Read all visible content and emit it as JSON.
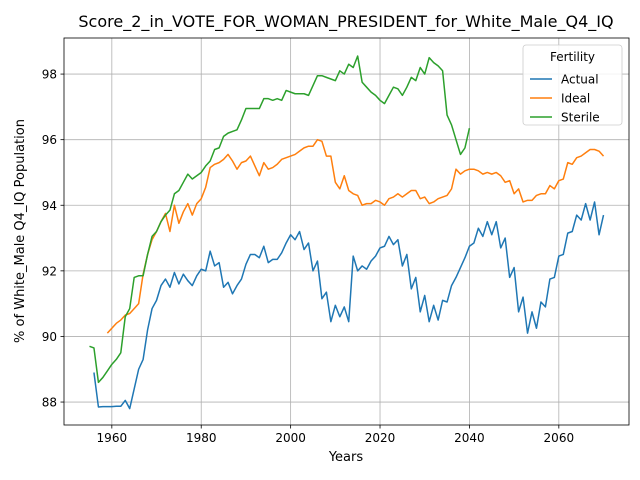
{
  "chart_data": {
    "type": "line",
    "title": "Score_2_in_VOTE_FOR_WOMAN_PRESIDENT_for_White_Male_Q4_IQ",
    "xlabel": "Years",
    "ylabel": "% of White_Male Q4_IQ Population",
    "xlim": [
      1949.3,
      2075.7
    ],
    "ylim": [
      87.3,
      99.1
    ],
    "x_ticks": [
      1960,
      1980,
      2000,
      2020,
      2040,
      2060
    ],
    "y_ticks": [
      88,
      90,
      92,
      94,
      96,
      98
    ],
    "grid": true,
    "legend": {
      "title": "Fertility",
      "placement": "top-right"
    },
    "series": [
      {
        "name": "Actual",
        "color": "#1f77b4",
        "points": [
          [
            1956,
            88.9
          ],
          [
            1957,
            87.85
          ],
          [
            1958,
            87.86
          ],
          [
            1959,
            87.86
          ],
          [
            1960,
            87.86
          ],
          [
            1961,
            87.87
          ],
          [
            1962,
            87.87
          ],
          [
            1963,
            88.05
          ],
          [
            1964,
            87.8
          ],
          [
            1965,
            88.4
          ],
          [
            1966,
            89
          ],
          [
            1967,
            89.3
          ],
          [
            1968,
            90.2
          ],
          [
            1969,
            90.85
          ],
          [
            1970,
            91.1
          ],
          [
            1971,
            91.55
          ],
          [
            1972,
            91.75
          ],
          [
            1973,
            91.5
          ],
          [
            1974,
            91.95
          ],
          [
            1975,
            91.6
          ],
          [
            1976,
            91.9
          ],
          [
            1977,
            91.7
          ],
          [
            1978,
            91.55
          ],
          [
            1979,
            91.85
          ],
          [
            1980,
            92.05
          ],
          [
            1981,
            92
          ],
          [
            1982,
            92.6
          ],
          [
            1983,
            92.15
          ],
          [
            1984,
            92.25
          ],
          [
            1985,
            91.5
          ],
          [
            1986,
            91.65
          ],
          [
            1987,
            91.3
          ],
          [
            1988,
            91.55
          ],
          [
            1989,
            91.75
          ],
          [
            1990,
            92.2
          ],
          [
            1991,
            92.5
          ],
          [
            1992,
            92.5
          ],
          [
            1993,
            92.4
          ],
          [
            1994,
            92.75
          ],
          [
            1995,
            92.25
          ],
          [
            1996,
            92.35
          ],
          [
            1997,
            92.35
          ],
          [
            1998,
            92.55
          ],
          [
            1999,
            92.85
          ],
          [
            2000,
            93.1
          ],
          [
            2001,
            92.95
          ],
          [
            2002,
            93.2
          ],
          [
            2003,
            92.65
          ],
          [
            2004,
            92.85
          ],
          [
            2005,
            92
          ],
          [
            2006,
            92.3
          ],
          [
            2007,
            91.15
          ],
          [
            2008,
            91.35
          ],
          [
            2009,
            90.45
          ],
          [
            2010,
            90.95
          ],
          [
            2011,
            90.6
          ],
          [
            2012,
            90.9
          ],
          [
            2013,
            90.45
          ],
          [
            2014,
            92.45
          ],
          [
            2015,
            92
          ],
          [
            2016,
            92.15
          ],
          [
            2017,
            92.05
          ],
          [
            2018,
            92.3
          ],
          [
            2019,
            92.45
          ],
          [
            2020,
            92.7
          ],
          [
            2021,
            92.75
          ],
          [
            2022,
            93.05
          ],
          [
            2023,
            92.8
          ],
          [
            2024,
            92.95
          ],
          [
            2025,
            92.15
          ],
          [
            2026,
            92.5
          ],
          [
            2027,
            91.45
          ],
          [
            2028,
            91.8
          ],
          [
            2029,
            90.75
          ],
          [
            2030,
            91.25
          ],
          [
            2031,
            90.45
          ],
          [
            2032,
            90.95
          ],
          [
            2033,
            90.5
          ],
          [
            2034,
            91.1
          ],
          [
            2035,
            91.05
          ],
          [
            2036,
            91.55
          ],
          [
            2037,
            91.8
          ],
          [
            2038,
            92.1
          ],
          [
            2039,
            92.4
          ],
          [
            2040,
            92.75
          ],
          [
            2041,
            92.85
          ],
          [
            2042,
            93.3
          ],
          [
            2043,
            93.05
          ],
          [
            2044,
            93.5
          ],
          [
            2045,
            93.1
          ],
          [
            2046,
            93.5
          ],
          [
            2047,
            92.7
          ],
          [
            2048,
            93
          ],
          [
            2049,
            91.8
          ],
          [
            2050,
            92.1
          ],
          [
            2051,
            90.75
          ],
          [
            2052,
            91.2
          ],
          [
            2053,
            90.1
          ],
          [
            2054,
            90.75
          ],
          [
            2055,
            90.25
          ],
          [
            2056,
            91.05
          ],
          [
            2057,
            90.9
          ],
          [
            2058,
            91.75
          ],
          [
            2059,
            91.8
          ],
          [
            2060,
            92.45
          ],
          [
            2061,
            92.5
          ],
          [
            2062,
            93.15
          ],
          [
            2063,
            93.2
          ],
          [
            2064,
            93.7
          ],
          [
            2065,
            93.55
          ],
          [
            2066,
            94.05
          ],
          [
            2067,
            93.55
          ],
          [
            2068,
            94.1
          ],
          [
            2069,
            93.1
          ],
          [
            2070,
            93.7
          ]
        ]
      },
      {
        "name": "Ideal",
        "color": "#ff7f0e",
        "points": [
          [
            1959,
            90.1
          ],
          [
            1960,
            90.25
          ],
          [
            1961,
            90.4
          ],
          [
            1962,
            90.5
          ],
          [
            1963,
            90.65
          ],
          [
            1964,
            90.7
          ],
          [
            1965,
            90.85
          ],
          [
            1966,
            91
          ],
          [
            1967,
            91.9
          ],
          [
            1968,
            92.5
          ],
          [
            1969,
            92.95
          ],
          [
            1970,
            93.2
          ],
          [
            1971,
            93.5
          ],
          [
            1972,
            93.75
          ],
          [
            1973,
            93.2
          ],
          [
            1974,
            94
          ],
          [
            1975,
            93.45
          ],
          [
            1976,
            93.8
          ],
          [
            1977,
            94.05
          ],
          [
            1978,
            93.7
          ],
          [
            1979,
            94.05
          ],
          [
            1980,
            94.2
          ],
          [
            1981,
            94.55
          ],
          [
            1982,
            95.15
          ],
          [
            1983,
            95.25
          ],
          [
            1984,
            95.3
          ],
          [
            1985,
            95.4
          ],
          [
            1986,
            95.55
          ],
          [
            1987,
            95.35
          ],
          [
            1988,
            95.1
          ],
          [
            1989,
            95.3
          ],
          [
            1990,
            95.35
          ],
          [
            1991,
            95.5
          ],
          [
            1992,
            95.2
          ],
          [
            1993,
            94.9
          ],
          [
            1994,
            95.3
          ],
          [
            1995,
            95.1
          ],
          [
            1996,
            95.15
          ],
          [
            1997,
            95.25
          ],
          [
            1998,
            95.4
          ],
          [
            1999,
            95.45
          ],
          [
            2000,
            95.5
          ],
          [
            2001,
            95.55
          ],
          [
            2002,
            95.65
          ],
          [
            2003,
            95.75
          ],
          [
            2004,
            95.8
          ],
          [
            2005,
            95.8
          ],
          [
            2006,
            96
          ],
          [
            2007,
            95.95
          ],
          [
            2008,
            95.5
          ],
          [
            2009,
            95.5
          ],
          [
            2010,
            94.7
          ],
          [
            2011,
            94.5
          ],
          [
            2012,
            94.9
          ],
          [
            2013,
            94.45
          ],
          [
            2014,
            94.35
          ],
          [
            2015,
            94.3
          ],
          [
            2016,
            94
          ],
          [
            2017,
            94.05
          ],
          [
            2018,
            94.05
          ],
          [
            2019,
            94.15
          ],
          [
            2020,
            94.1
          ],
          [
            2021,
            94
          ],
          [
            2022,
            94.2
          ],
          [
            2023,
            94.25
          ],
          [
            2024,
            94.35
          ],
          [
            2025,
            94.25
          ],
          [
            2026,
            94.35
          ],
          [
            2027,
            94.45
          ],
          [
            2028,
            94.45
          ],
          [
            2029,
            94.2
          ],
          [
            2030,
            94.25
          ],
          [
            2031,
            94.05
          ],
          [
            2032,
            94.1
          ],
          [
            2033,
            94.2
          ],
          [
            2034,
            94.25
          ],
          [
            2035,
            94.3
          ],
          [
            2036,
            94.5
          ],
          [
            2037,
            95.1
          ],
          [
            2038,
            94.95
          ],
          [
            2039,
            95.05
          ],
          [
            2040,
            95.1
          ],
          [
            2041,
            95.1
          ],
          [
            2042,
            95.05
          ],
          [
            2043,
            94.95
          ],
          [
            2044,
            95
          ],
          [
            2045,
            94.95
          ],
          [
            2046,
            95
          ],
          [
            2047,
            94.9
          ],
          [
            2048,
            94.7
          ],
          [
            2049,
            94.75
          ],
          [
            2050,
            94.35
          ],
          [
            2051,
            94.5
          ],
          [
            2052,
            94.1
          ],
          [
            2053,
            94.15
          ],
          [
            2054,
            94.15
          ],
          [
            2055,
            94.3
          ],
          [
            2056,
            94.35
          ],
          [
            2057,
            94.35
          ],
          [
            2058,
            94.6
          ],
          [
            2059,
            94.5
          ],
          [
            2060,
            94.75
          ],
          [
            2061,
            94.8
          ],
          [
            2062,
            95.3
          ],
          [
            2063,
            95.25
          ],
          [
            2064,
            95.45
          ],
          [
            2065,
            95.5
          ],
          [
            2066,
            95.6
          ],
          [
            2067,
            95.7
          ],
          [
            2068,
            95.7
          ],
          [
            2069,
            95.65
          ],
          [
            2070,
            95.5
          ]
        ]
      },
      {
        "name": "Sterile",
        "color": "#2ca02c",
        "points": [
          [
            1955,
            89.7
          ],
          [
            1956,
            89.65
          ],
          [
            1957,
            88.6
          ],
          [
            1958,
            88.75
          ],
          [
            1959,
            88.95
          ],
          [
            1960,
            89.15
          ],
          [
            1961,
            89.3
          ],
          [
            1962,
            89.5
          ],
          [
            1963,
            90.6
          ],
          [
            1964,
            90.85
          ],
          [
            1965,
            91.8
          ],
          [
            1966,
            91.85
          ],
          [
            1967,
            91.85
          ],
          [
            1968,
            92.5
          ],
          [
            1969,
            93.05
          ],
          [
            1970,
            93.2
          ],
          [
            1971,
            93.5
          ],
          [
            1972,
            93.7
          ],
          [
            1973,
            93.85
          ],
          [
            1974,
            94.35
          ],
          [
            1975,
            94.45
          ],
          [
            1976,
            94.7
          ],
          [
            1977,
            94.95
          ],
          [
            1978,
            94.8
          ],
          [
            1979,
            94.9
          ],
          [
            1980,
            95
          ],
          [
            1981,
            95.2
          ],
          [
            1982,
            95.35
          ],
          [
            1983,
            95.7
          ],
          [
            1984,
            95.75
          ],
          [
            1985,
            96.1
          ],
          [
            1986,
            96.2
          ],
          [
            1987,
            96.25
          ],
          [
            1988,
            96.3
          ],
          [
            1989,
            96.6
          ],
          [
            1990,
            96.95
          ],
          [
            1991,
            96.95
          ],
          [
            1992,
            96.95
          ],
          [
            1993,
            96.95
          ],
          [
            1994,
            97.25
          ],
          [
            1995,
            97.25
          ],
          [
            1996,
            97.2
          ],
          [
            1997,
            97.25
          ],
          [
            1998,
            97.2
          ],
          [
            1999,
            97.5
          ],
          [
            2000,
            97.45
          ],
          [
            2001,
            97.4
          ],
          [
            2002,
            97.4
          ],
          [
            2003,
            97.4
          ],
          [
            2004,
            97.35
          ],
          [
            2005,
            97.65
          ],
          [
            2006,
            97.95
          ],
          [
            2007,
            97.95
          ],
          [
            2008,
            97.9
          ],
          [
            2009,
            97.85
          ],
          [
            2010,
            97.8
          ],
          [
            2011,
            98.1
          ],
          [
            2012,
            98
          ],
          [
            2013,
            98.3
          ],
          [
            2014,
            98.2
          ],
          [
            2015,
            98.55
          ],
          [
            2016,
            97.75
          ],
          [
            2017,
            97.6
          ],
          [
            2018,
            97.45
          ],
          [
            2019,
            97.35
          ],
          [
            2020,
            97.2
          ],
          [
            2021,
            97.1
          ],
          [
            2022,
            97.35
          ],
          [
            2023,
            97.6
          ],
          [
            2024,
            97.55
          ],
          [
            2025,
            97.35
          ],
          [
            2026,
            97.6
          ],
          [
            2027,
            97.9
          ],
          [
            2028,
            97.8
          ],
          [
            2029,
            98.2
          ],
          [
            2030,
            98
          ],
          [
            2031,
            98.5
          ],
          [
            2032,
            98.35
          ],
          [
            2033,
            98.25
          ],
          [
            2034,
            98.1
          ],
          [
            2035,
            96.75
          ],
          [
            2036,
            96.45
          ],
          [
            2037,
            96
          ],
          [
            2038,
            95.55
          ],
          [
            2039,
            95.75
          ],
          [
            2040,
            96.35
          ]
        ]
      }
    ]
  }
}
